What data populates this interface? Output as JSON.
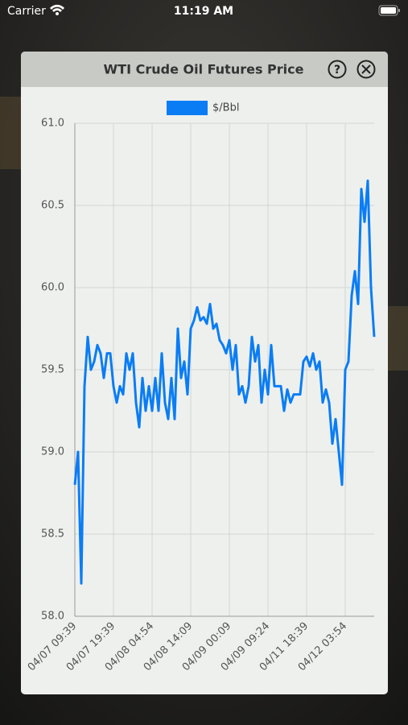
{
  "status_bar": {
    "carrier": "Carrier",
    "time": "11:19 AM"
  },
  "dialog": {
    "title": "WTI Crude Oil Futures Price"
  },
  "chart_data": {
    "type": "line",
    "categories": [
      "04/07 09:39",
      null,
      null,
      null,
      null,
      null,
      null,
      null,
      null,
      null,
      null,
      null,
      "04/07 19:39",
      null,
      null,
      null,
      null,
      null,
      null,
      null,
      null,
      null,
      null,
      null,
      "04/08 04:54",
      null,
      null,
      null,
      null,
      null,
      null,
      null,
      null,
      null,
      null,
      null,
      "04/08 14:09",
      null,
      null,
      null,
      null,
      null,
      null,
      null,
      null,
      null,
      null,
      null,
      "04/09 00:09",
      null,
      null,
      null,
      null,
      null,
      null,
      null,
      null,
      null,
      null,
      null,
      "04/09 09:24",
      null,
      null,
      null,
      null,
      null,
      null,
      null,
      null,
      null,
      null,
      null,
      "04/11 18:39",
      null,
      null,
      null,
      null,
      null,
      null,
      null,
      null,
      null,
      null,
      null,
      "04/12 03:54",
      null,
      null,
      null,
      null,
      null,
      null,
      null,
      null,
      null
    ],
    "series": [
      {
        "name": "$/Bbl",
        "color": "#0a7df5",
        "values": [
          58.8,
          59.0,
          58.2,
          59.4,
          59.7,
          59.5,
          59.55,
          59.65,
          59.6,
          59.45,
          59.6,
          59.6,
          59.4,
          59.3,
          59.4,
          59.35,
          59.6,
          59.5,
          59.6,
          59.3,
          59.15,
          59.45,
          59.25,
          59.4,
          59.25,
          59.45,
          59.25,
          59.6,
          59.3,
          59.2,
          59.45,
          59.2,
          59.75,
          59.45,
          59.55,
          59.35,
          59.75,
          59.8,
          59.88,
          59.8,
          59.82,
          59.78,
          59.9,
          59.75,
          59.78,
          59.68,
          59.65,
          59.6,
          59.68,
          59.5,
          59.65,
          59.35,
          59.4,
          59.3,
          59.4,
          59.7,
          59.55,
          59.65,
          59.3,
          59.5,
          59.35,
          59.65,
          59.4,
          59.4,
          59.4,
          59.25,
          59.38,
          59.3,
          59.35,
          59.35,
          59.35,
          59.55,
          59.58,
          59.52,
          59.6,
          59.5,
          59.55,
          59.3,
          59.38,
          59.3,
          59.05,
          59.2,
          59.0,
          58.8,
          59.5,
          59.55,
          59.95,
          60.1,
          59.9,
          60.6,
          60.4,
          60.65,
          60.0,
          59.7
        ]
      }
    ],
    "ylim": [
      58.0,
      61.0
    ],
    "yticks": [
      {
        "value": 58,
        "label": "58.0"
      },
      58.5,
      {
        "value": 59,
        "label": "59.0"
      },
      59.5,
      {
        "value": 60,
        "label": "60.0"
      },
      60.5,
      {
        "value": 61,
        "label": "61.0"
      }
    ],
    "grid": true
  }
}
